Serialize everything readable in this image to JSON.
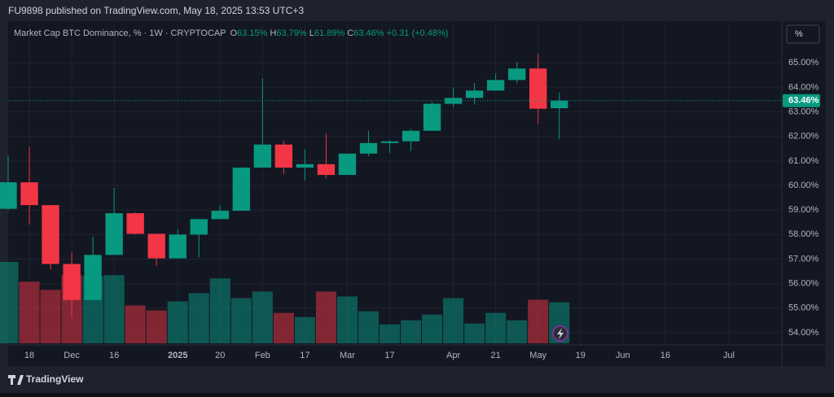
{
  "header": "FU9898 published on TradingView.com, May 18, 2025 13:53 UTC+3",
  "footer": "TradingView",
  "chart_data": {
    "type": "candlestick",
    "legend": {
      "symbol": "Market Cap BTC Dominance, % · 1W · CRYPTOCAP",
      "open_key": "O",
      "open": "63.15%",
      "high_key": "H",
      "high": "63.79%",
      "low_key": "L",
      "low": "61.89%",
      "close_key": "C",
      "close": "63.46%",
      "change": "+0.31 (+0.48%)"
    },
    "unit_button": "%",
    "last_price": {
      "value": 63.46,
      "label": "63.46%"
    },
    "up_color": "#089981",
    "down_color": "#f23645",
    "x": [
      0,
      1,
      2,
      3,
      4,
      5,
      6,
      7,
      8,
      9,
      10,
      11,
      12,
      13,
      14,
      15,
      16,
      17,
      18,
      19,
      20,
      21,
      22,
      23,
      24,
      25,
      26
    ],
    "open": [
      59.05,
      60.13,
      59.2,
      56.8,
      55.33,
      57.17,
      58.87,
      58.03,
      57.03,
      58.0,
      58.63,
      58.97,
      60.73,
      61.67,
      60.73,
      60.87,
      60.43,
      61.3,
      61.73,
      61.8,
      62.23,
      63.33,
      63.57,
      63.87,
      64.3,
      64.77,
      63.15
    ],
    "high": [
      61.2,
      61.57,
      59.2,
      57.27,
      57.9,
      59.9,
      58.9,
      58.03,
      58.2,
      58.63,
      59.2,
      60.73,
      64.37,
      61.83,
      61.47,
      62.13,
      61.3,
      62.23,
      61.85,
      62.3,
      63.4,
      64.0,
      64.17,
      64.57,
      65.03,
      65.37,
      63.79
    ],
    "low": [
      59.0,
      58.4,
      56.57,
      54.63,
      55.33,
      57.17,
      58.0,
      56.73,
      57.03,
      57.07,
      58.63,
      59.0,
      60.73,
      60.47,
      60.2,
      60.3,
      60.43,
      61.2,
      61.33,
      61.4,
      62.23,
      63.2,
      63.3,
      63.87,
      64.17,
      62.53,
      61.89
    ],
    "close": [
      60.13,
      59.2,
      56.8,
      55.33,
      57.17,
      58.87,
      58.03,
      57.03,
      58.0,
      58.63,
      58.97,
      60.73,
      61.67,
      60.73,
      60.87,
      60.43,
      61.3,
      61.73,
      61.8,
      62.23,
      63.33,
      63.57,
      63.87,
      64.3,
      64.77,
      63.13,
      63.46
    ],
    "volume": [
      99,
      75,
      65,
      83,
      82,
      83,
      46,
      40,
      51,
      61,
      79,
      55,
      63,
      37,
      32,
      63,
      57,
      39,
      23,
      28,
      35,
      55,
      24,
      37,
      28,
      53,
      50
    ],
    "xlim": [
      0,
      36.5
    ],
    "xticks": [
      {
        "value": 1,
        "label": "18"
      },
      {
        "value": 3,
        "label": "Dec"
      },
      {
        "value": 5,
        "label": "16"
      },
      {
        "value": 8,
        "label": "2025"
      },
      {
        "value": 10,
        "label": "20"
      },
      {
        "value": 12,
        "label": "Feb"
      },
      {
        "value": 14,
        "label": "17"
      },
      {
        "value": 16,
        "label": "Mar"
      },
      {
        "value": 18,
        "label": "17"
      },
      {
        "value": 21,
        "label": "Apr"
      },
      {
        "value": 23,
        "label": "21"
      },
      {
        "value": 25,
        "label": "May"
      },
      {
        "value": 27,
        "label": "19"
      },
      {
        "value": 29,
        "label": "Jun"
      },
      {
        "value": 31,
        "label": "16"
      },
      {
        "value": 34,
        "label": "Jul"
      }
    ],
    "ylim": [
      53.5,
      66.7
    ],
    "yticks": [
      {
        "value": 54,
        "label": "54.00%"
      },
      {
        "value": 55,
        "label": "55.00%"
      },
      {
        "value": 56,
        "label": "56.00%"
      },
      {
        "value": 57,
        "label": "57.00%"
      },
      {
        "value": 58,
        "label": "58.00%"
      },
      {
        "value": 59,
        "label": "59.00%"
      },
      {
        "value": 60,
        "label": "60.00%"
      },
      {
        "value": 61,
        "label": "61.00%"
      },
      {
        "value": 62,
        "label": "62.00%"
      },
      {
        "value": 63,
        "label": "63.00%"
      },
      {
        "value": 64,
        "label": "64.00%"
      },
      {
        "value": 65,
        "label": "65.00%"
      }
    ],
    "grid": true
  }
}
